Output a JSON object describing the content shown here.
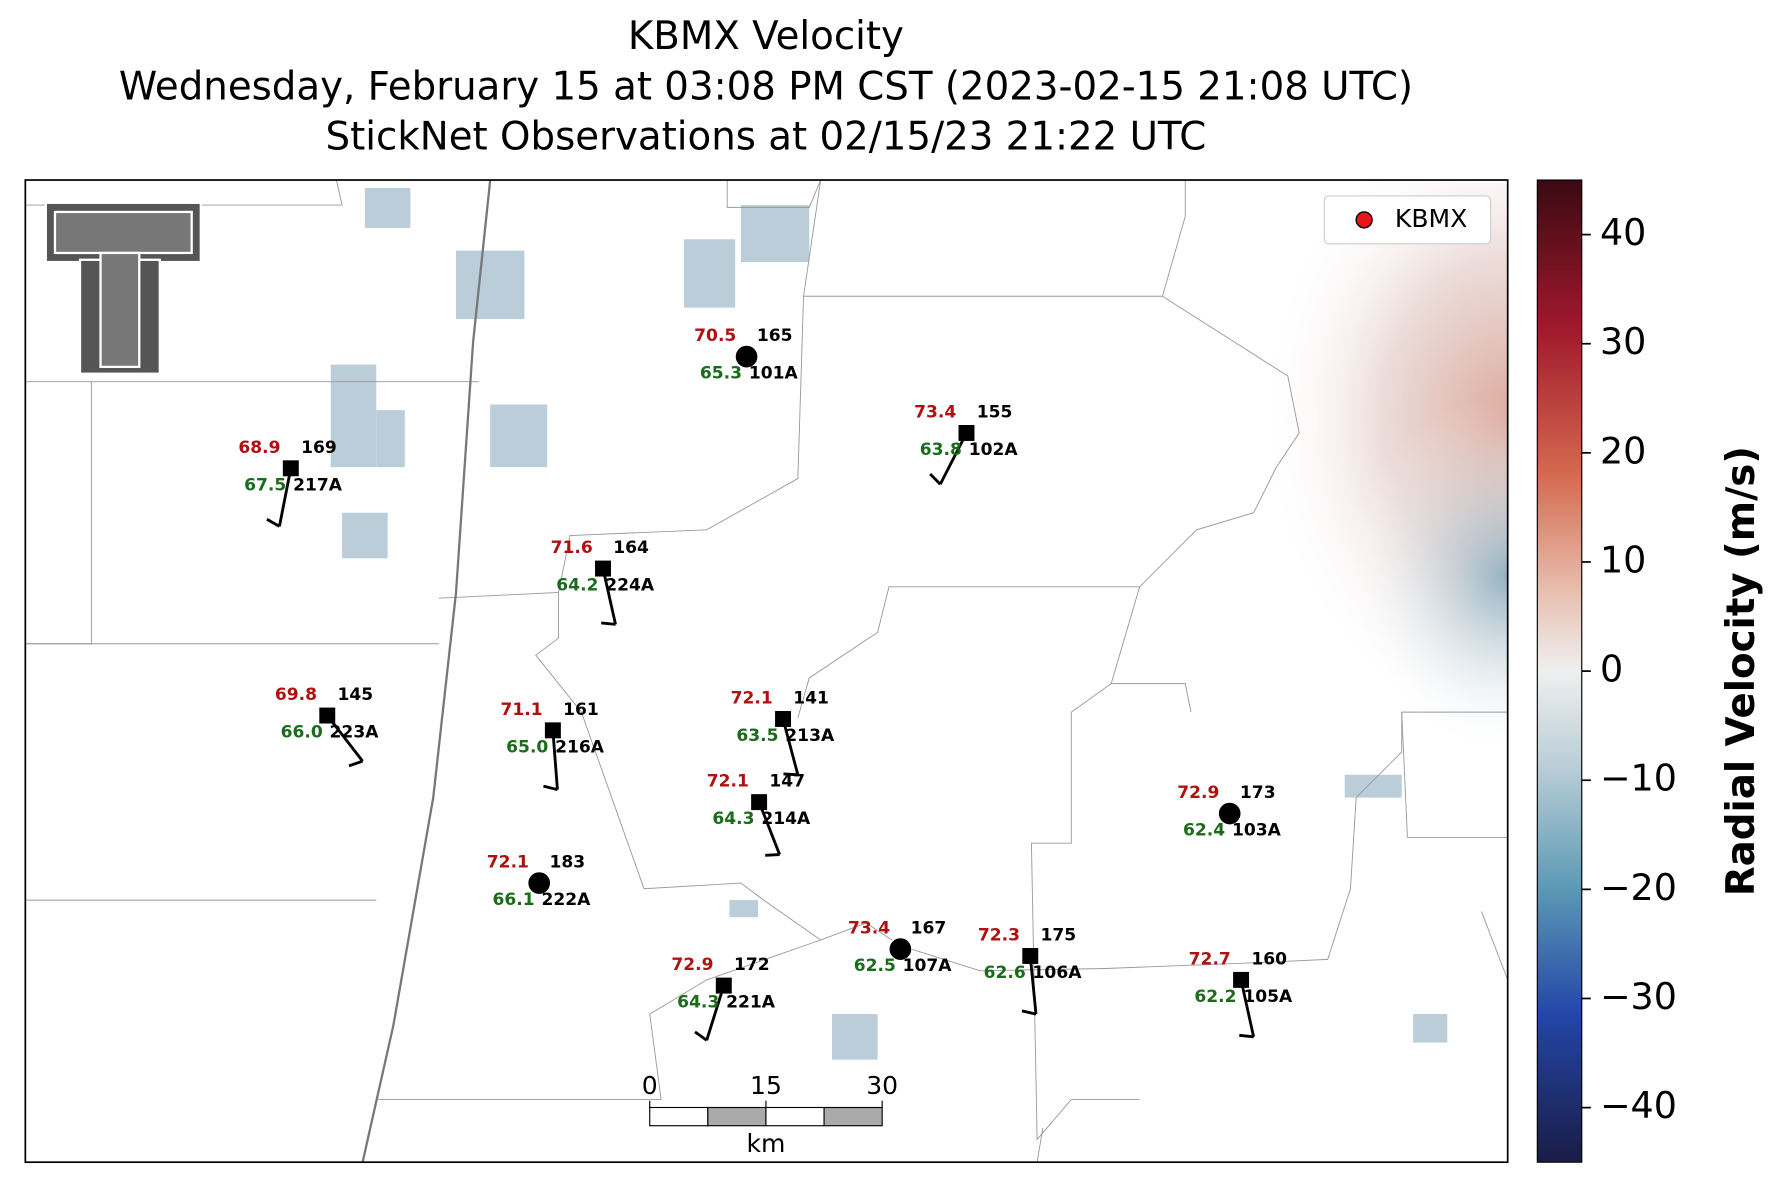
{
  "header": {
    "title": "KBMX Velocity",
    "subtitle": "Wednesday, February 15 at 03:08 PM CST (2023-02-15 21:08 UTC)",
    "subtitle2": "StickNet Observations at 02/15/23 21:22 UTC"
  },
  "legend": {
    "label": "KBMX",
    "color": "#e8151b"
  },
  "stations": [
    {
      "id": "101A",
      "temperature": "70.5",
      "dewpoint": "65.3",
      "number": "165",
      "marker": "circle"
    },
    {
      "id": "102A",
      "temperature": "73.4",
      "dewpoint": "63.8",
      "number": "155",
      "marker": "square"
    },
    {
      "id": "217A",
      "temperature": "68.9",
      "dewpoint": "67.5",
      "number": "169",
      "marker": "square"
    },
    {
      "id": "224A",
      "temperature": "71.6",
      "dewpoint": "64.2",
      "number": "164",
      "marker": "square"
    },
    {
      "id": "223A",
      "temperature": "69.8",
      "dewpoint": "66.0",
      "number": "145",
      "marker": "square"
    },
    {
      "id": "216A",
      "temperature": "71.1",
      "dewpoint": "65.0",
      "number": "161",
      "marker": "square"
    },
    {
      "id": "213A",
      "temperature": "72.1",
      "dewpoint": "63.5",
      "number": "141",
      "marker": "square"
    },
    {
      "id": "214A",
      "temperature": "72.1",
      "dewpoint": "64.3",
      "number": "147",
      "marker": "square"
    },
    {
      "id": "103A",
      "temperature": "72.9",
      "dewpoint": "62.4",
      "number": "173",
      "marker": "circle"
    },
    {
      "id": "222A",
      "temperature": "72.1",
      "dewpoint": "66.1",
      "number": "183",
      "marker": "circle"
    },
    {
      "id": "107A",
      "temperature": "73.4",
      "dewpoint": "62.5",
      "number": "167",
      "marker": "circle"
    },
    {
      "id": "106A",
      "temperature": "72.3",
      "dewpoint": "62.6",
      "number": "175",
      "marker": "square"
    },
    {
      "id": "105A",
      "temperature": "72.7",
      "dewpoint": "62.2",
      "number": "160",
      "marker": "square"
    },
    {
      "id": "221A",
      "temperature": "72.9",
      "dewpoint": "64.3",
      "number": "172",
      "marker": "square"
    }
  ],
  "scale_bar": {
    "ticks": [
      "0",
      "15",
      "30"
    ],
    "unit": "km"
  },
  "colorbar": {
    "label": "Radial Velocity (m/s)",
    "lim": [
      -45,
      45
    ],
    "ticks": [
      {
        "value": -40,
        "label": "−40"
      },
      {
        "value": -30,
        "label": "−30"
      },
      {
        "value": -20,
        "label": "−20"
      },
      {
        "value": -10,
        "label": "−10"
      },
      0,
      10,
      20,
      30,
      40
    ]
  }
}
